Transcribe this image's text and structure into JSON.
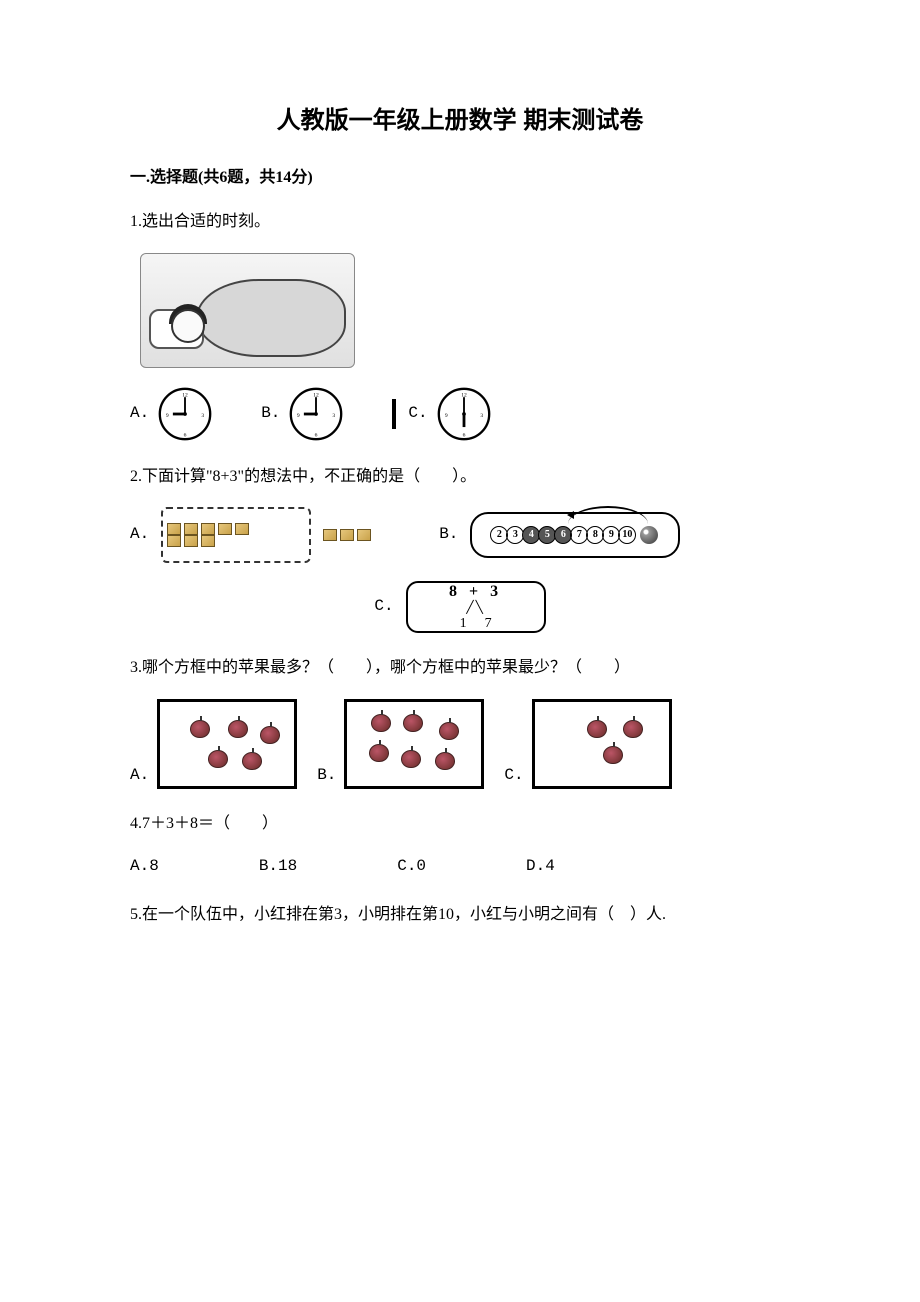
{
  "title": "人教版一年级上册数学 期末测试卷",
  "section1": {
    "header": "一.选择题(共6题，共14分)",
    "q1": {
      "text": "1.选出合适的时刻。",
      "clocks": {
        "A": {
          "hour": 9,
          "minute": 0
        },
        "B": {
          "hour": 9,
          "minute": 0
        },
        "C": {
          "hour": 6,
          "minute": 0
        }
      },
      "labels": {
        "A": "A.",
        "B": "B.",
        "C": "C."
      }
    },
    "q2": {
      "text": "2.下面计算\"8+3\"的想法中，不正确的是（　　）。",
      "labels": {
        "A": "A.",
        "B": "B.",
        "C": "C."
      },
      "optionA": {
        "rows": [
          5,
          3
        ],
        "extra": 3
      },
      "optionB": {
        "numbers": [
          2,
          3,
          4,
          5,
          6,
          7,
          8,
          9,
          10
        ],
        "filled": [
          4,
          5,
          6
        ]
      },
      "optionC": {
        "top": "8  +  3",
        "bottom_left": "1",
        "bottom_right": "7"
      }
    },
    "q3": {
      "text": "3.哪个方框中的苹果最多？（　　），哪个方框中的苹果最少？（　　）",
      "labels": {
        "A": "A.",
        "B": "B.",
        "C": "C."
      },
      "apples": {
        "A": [
          [
            30,
            18
          ],
          [
            68,
            18
          ],
          [
            100,
            24
          ],
          [
            48,
            48
          ],
          [
            82,
            50
          ]
        ],
        "B": [
          [
            24,
            12
          ],
          [
            56,
            12
          ],
          [
            92,
            20
          ],
          [
            22,
            42
          ],
          [
            54,
            48
          ],
          [
            88,
            50
          ]
        ],
        "C": [
          [
            52,
            18
          ],
          [
            88,
            18
          ],
          [
            68,
            44
          ]
        ]
      }
    },
    "q4": {
      "text": "4.7＋3＋8＝（　　）",
      "options": {
        "A": "A.8",
        "B": "B.18",
        "C": "C.0",
        "D": "D.4"
      }
    },
    "q5": {
      "text": "5.在一个队伍中，小红排在第3，小明排在第10，小红与小明之间有（　）人."
    }
  },
  "colors": {
    "text": "#000000",
    "background": "#ffffff",
    "border": "#000000"
  }
}
